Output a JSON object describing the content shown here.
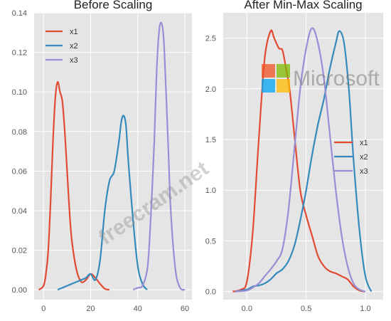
{
  "chart_data": [
    {
      "type": "line",
      "title": "Before Scaling",
      "xlabel": "",
      "ylabel": "",
      "xlim": [
        -4,
        63
      ],
      "ylim": [
        -0.005,
        0.14
      ],
      "xticks": [
        0,
        20,
        40,
        60
      ],
      "yticks": [
        0.0,
        0.02,
        0.04,
        0.06,
        0.08,
        0.1,
        0.12,
        0.14
      ],
      "xtick_labels": [
        "0",
        "20",
        "40",
        "60"
      ],
      "ytick_labels": [
        "0.00",
        "0.02",
        "0.04",
        "0.06",
        "0.08",
        "0.10",
        "0.12",
        "0.14"
      ],
      "grid": true,
      "legend_position": "top-left",
      "series": [
        {
          "name": "x1",
          "color": "#e24a33",
          "x": [
            -2,
            0,
            1,
            2,
            3,
            4,
            5,
            6,
            7,
            8,
            9,
            10,
            11,
            12,
            14,
            16,
            18,
            20,
            22,
            24,
            26,
            28
          ],
          "y": [
            0.0,
            0.002,
            0.008,
            0.02,
            0.045,
            0.075,
            0.097,
            0.105,
            0.1,
            0.095,
            0.08,
            0.06,
            0.04,
            0.025,
            0.01,
            0.004,
            0.005,
            0.008,
            0.006,
            0.003,
            0.0005,
            0.0
          ]
        },
        {
          "name": "x2",
          "color": "#348abd",
          "x": [
            6,
            8,
            10,
            12,
            14,
            16,
            18,
            20,
            22,
            24,
            26,
            28,
            30,
            32,
            33,
            34,
            35,
            36,
            38,
            40,
            42,
            44
          ],
          "y": [
            0.0,
            0.001,
            0.002,
            0.003,
            0.004,
            0.005,
            0.006,
            0.008,
            0.005,
            0.015,
            0.04,
            0.055,
            0.06,
            0.075,
            0.085,
            0.088,
            0.083,
            0.065,
            0.035,
            0.012,
            0.003,
            0.0
          ]
        },
        {
          "name": "x3",
          "color": "#988ed5",
          "x": [
            38,
            40,
            42,
            44,
            45,
            46,
            47,
            48,
            49,
            50,
            51,
            52,
            53,
            54,
            56,
            58,
            60
          ],
          "y": [
            0.0,
            0.001,
            0.002,
            0.01,
            0.025,
            0.048,
            0.075,
            0.11,
            0.13,
            0.135,
            0.127,
            0.1,
            0.07,
            0.04,
            0.01,
            0.001,
            0.0
          ]
        }
      ]
    },
    {
      "type": "line",
      "title": "After Min-Max Scaling",
      "xlabel": "",
      "ylabel": "",
      "xlim": [
        -0.2,
        1.15
      ],
      "ylim": [
        -0.08,
        2.75
      ],
      "xticks": [
        0.0,
        0.5,
        1.0
      ],
      "yticks": [
        0.0,
        0.5,
        1.0,
        1.5,
        2.0,
        2.5
      ],
      "xtick_labels": [
        "0.0",
        "0.5",
        "1.0"
      ],
      "ytick_labels": [
        "0.0",
        "0.5",
        "1.0",
        "1.5",
        "2.0",
        "2.5"
      ],
      "grid": true,
      "legend_position": "center-right",
      "series": [
        {
          "name": "x1",
          "color": "#e24a33",
          "x": [
            -0.12,
            -0.05,
            0.0,
            0.05,
            0.1,
            0.15,
            0.2,
            0.23,
            0.27,
            0.3,
            0.33,
            0.36,
            0.4,
            0.45,
            0.5,
            0.55,
            0.6,
            0.65,
            0.7,
            0.75,
            0.8,
            0.85,
            0.9,
            0.95,
            1.0
          ],
          "y": [
            0.0,
            0.02,
            0.1,
            0.6,
            1.5,
            2.3,
            2.57,
            2.5,
            2.4,
            2.38,
            2.2,
            2.0,
            1.55,
            1.0,
            0.75,
            0.55,
            0.35,
            0.25,
            0.2,
            0.18,
            0.15,
            0.12,
            0.05,
            0.01,
            0.0
          ]
        },
        {
          "name": "x2",
          "color": "#348abd",
          "x": [
            -0.1,
            0.0,
            0.05,
            0.1,
            0.15,
            0.2,
            0.25,
            0.3,
            0.35,
            0.4,
            0.45,
            0.5,
            0.55,
            0.6,
            0.65,
            0.7,
            0.75,
            0.78,
            0.82,
            0.86,
            0.9,
            0.95,
            1.0,
            1.05
          ],
          "y": [
            0.0,
            0.02,
            0.05,
            0.06,
            0.08,
            0.12,
            0.18,
            0.22,
            0.3,
            0.45,
            0.7,
            1.0,
            1.35,
            1.65,
            1.9,
            2.2,
            2.45,
            2.57,
            2.45,
            2.0,
            1.3,
            0.6,
            0.15,
            0.0
          ]
        },
        {
          "name": "x3",
          "color": "#988ed5",
          "x": [
            -0.1,
            0.0,
            0.05,
            0.1,
            0.15,
            0.2,
            0.25,
            0.3,
            0.35,
            0.4,
            0.45,
            0.5,
            0.55,
            0.6,
            0.65,
            0.7,
            0.75,
            0.8,
            0.85,
            0.9,
            0.95,
            1.0
          ],
          "y": [
            0.0,
            0.01,
            0.04,
            0.08,
            0.15,
            0.22,
            0.3,
            0.42,
            0.8,
            1.4,
            2.0,
            2.4,
            2.6,
            2.45,
            2.1,
            1.55,
            1.0,
            0.55,
            0.25,
            0.08,
            0.02,
            0.0
          ]
        }
      ]
    }
  ],
  "watermark": {
    "text": "freecram.net",
    "brand_text": "Microsoft",
    "logo_colors": [
      "#f25022",
      "#7fba00",
      "#00a4ef",
      "#ffb900"
    ]
  }
}
